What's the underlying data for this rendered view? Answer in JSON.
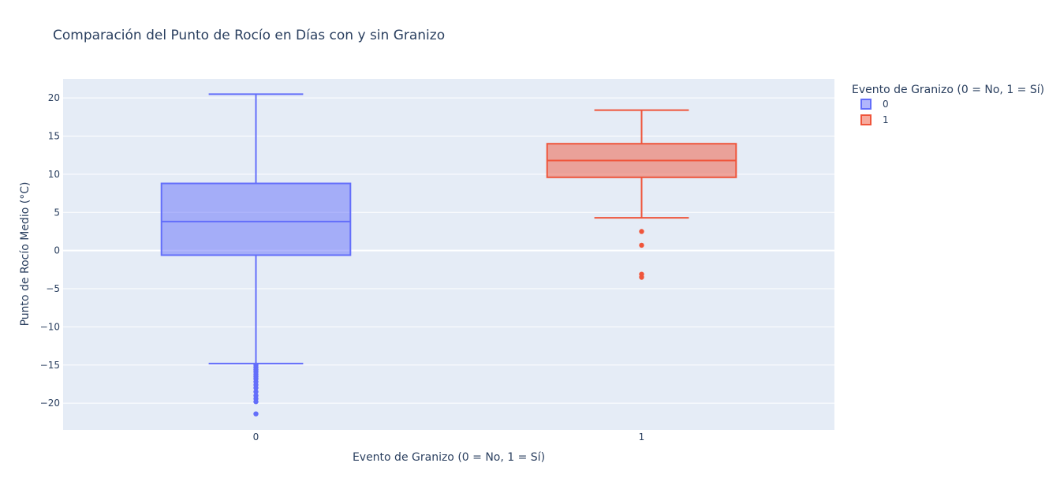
{
  "chart_data": {
    "type": "box",
    "title": "Comparación del Punto de Rocío en Días con y sin Granizo",
    "xlabel": "Evento de Granizo (0 = No, 1 = Sí)",
    "ylabel": "Punto de Rocío Medio (°C)",
    "categories": [
      "0",
      "1"
    ],
    "ylim": [
      -23.5,
      22.5
    ],
    "yticks": [
      20,
      15,
      10,
      5,
      0,
      -5,
      -10,
      -15,
      -20
    ],
    "legend": {
      "title": "Evento de Granizo (0 = No, 1 = Sí)",
      "placement": "top-right"
    },
    "grid": true,
    "series": [
      {
        "name": "0",
        "color": "#636efa",
        "lower_fence": -14.8,
        "q1": -0.6,
        "median": 3.8,
        "q3": 8.8,
        "upper_fence": 20.5,
        "outliers": [
          -15.0,
          -15.3,
          -15.6,
          -15.9,
          -16.2,
          -16.5,
          -16.8,
          -17.2,
          -17.6,
          -18.0,
          -18.5,
          -19.0,
          -19.4,
          -19.8,
          -21.4
        ]
      },
      {
        "name": "1",
        "color": "#ef553b",
        "lower_fence": 4.3,
        "q1": 9.6,
        "median": 11.8,
        "q3": 14.0,
        "upper_fence": 18.4,
        "outliers": [
          2.5,
          0.7,
          -3.1,
          -3.5
        ]
      }
    ]
  }
}
